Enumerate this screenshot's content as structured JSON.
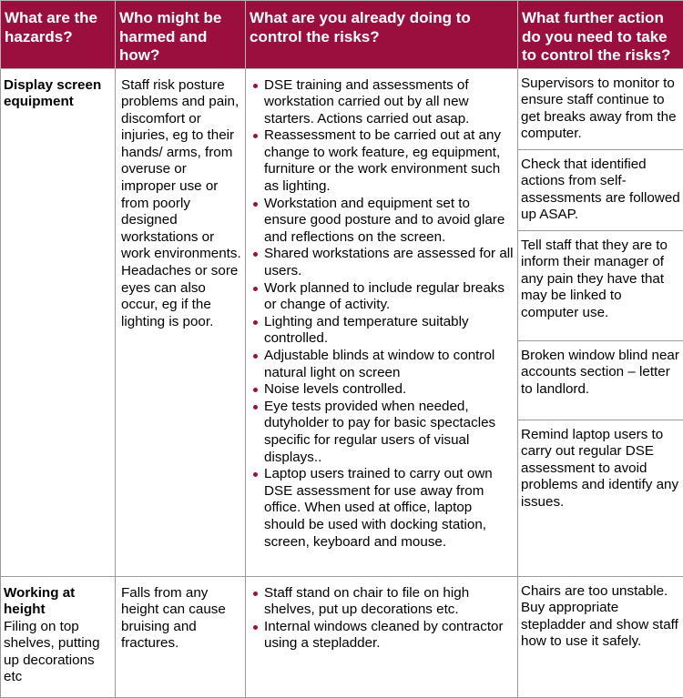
{
  "headers": [
    "What are the hazards?",
    "Who might be harmed and how?",
    "What are you already doing to control the risks?",
    "What further action do you need to take to control the risks?"
  ],
  "rows": [
    {
      "hazard_title": "Display screen equipment",
      "hazard_detail": "",
      "who": "Staff risk posture problems and pain, discomfort or injuries, eg to their hands/ arms, from overuse or improper use or from poorly designed workstations or work environments. Headaches or sore eyes can also occur, eg if the lighting is poor.",
      "doing": [
        "DSE training and assessments of workstation carried out by all new starters. Actions carried out asap.",
        "Reassessment to be carried out at any change to work feature, eg equipment, furniture or the work environment such as lighting.",
        "Workstation and equipment set to ensure good posture and to avoid glare and reflections on the screen.",
        "Shared workstations are assessed for all users.",
        "Work planned to include regular breaks or change of activity.",
        "Lighting and temperature suitably controlled.",
        "Adjustable blinds at window to control natural light on screen",
        "Noise levels controlled.",
        "Eye tests provided when needed, dutyholder to pay for basic spectacles specific for regular users of visual displays..",
        "Laptop users trained to carry out own DSE assessment for use away from office. When used at office, laptop should be used with docking station, screen, keyboard and mouse."
      ],
      "further": [
        "Supervisors to monitor to ensure staff continue to get breaks away from the computer.",
        "Check that identified actions from self-assessments are followed up ASAP.",
        "Tell staff that they are to inform their manager of any pain they have that may be linked to computer use.",
        "Broken window blind near accounts section – letter to landlord.",
        "Remind laptop users to carry out regular DSE assessment to avoid problems and identify any issues."
      ]
    },
    {
      "hazard_title": "Working at height",
      "hazard_detail": "Filing on top shelves, putting up decorations etc",
      "who": "Falls from any height can cause bruising and fractures.",
      "doing": [
        "Staff stand on chair to file on high shelves, put up decorations etc.",
        "Internal windows cleaned by contractor using a stepladder."
      ],
      "further": [
        "Chairs are too unstable. Buy appropriate stepladder and show staff how to use it safely."
      ]
    }
  ],
  "colors": {
    "header_bg": "#9b0f3f",
    "bullet": "#9b0f3f",
    "border": "#9a9a9a"
  }
}
